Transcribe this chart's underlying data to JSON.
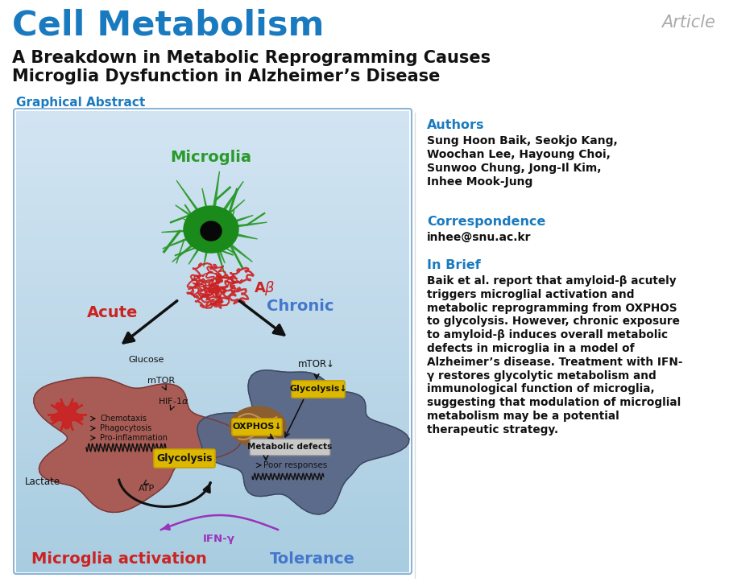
{
  "title_journal": "Cell Metabolism",
  "title_journal_color": "#1a7abf",
  "article_label": "Article",
  "article_color": "#aaaaaa",
  "paper_title_line1": "A Breakdown in Metabolic Reprogramming Causes",
  "paper_title_line2": "Microglia Dysfunction in Alzheimer’s Disease",
  "paper_title_color": "#111111",
  "graphical_abstract_label": "Graphical Abstract",
  "graphical_abstract_color": "#1a7abf",
  "authors_label": "Authors",
  "authors_color": "#1a7abf",
  "authors_lines": [
    "Sung Hoon Baik, Seokjo Kang,",
    "Woochan Lee, Hayoung Choi,",
    "Sunwoo Chung, Jong-Il Kim,",
    "Inhee Mook-Jung"
  ],
  "correspondence_label": "Correspondence",
  "correspondence_color": "#1a7abf",
  "correspondence_email": "inhee@snu.ac.kr",
  "in_brief_label": "In Brief",
  "in_brief_color": "#1a7abf",
  "in_brief_lines": [
    "Baik et al. report that amyloid-β acutely",
    "triggers microglial activation and",
    "metabolic reprogramming from OXPHOS",
    "to glycolysis. However, chronic exposure",
    "to amyloid-β induces overall metabolic",
    "defects in microglia in a model of",
    "Alzheimer’s disease. Treatment with IFN-",
    "γ restores glycolytic metabolism and",
    "immunological function of microglia,",
    "suggesting that modulation of microglial",
    "metabolism may be a potential",
    "therapeutic strategy."
  ],
  "bg_color": "#ffffff",
  "box_border_color": "#8ab4d8",
  "left_cell_color": "#a85850",
  "right_cell_color": "#5a6888",
  "microglia_green": "#2a9a2a",
  "microglia_body": "#1a8a1a",
  "nucleus_color": "#080808",
  "ab_color": "#cc2222",
  "acute_color": "#cc2222",
  "chronic_color": "#4477cc",
  "activation_color": "#cc2222",
  "tolerance_color": "#4477cc",
  "gold_color": "#c8a000",
  "gold_bg": "#ddb800",
  "mito_color": "#8b5e30",
  "mito_light": "#c49050",
  "arrow_black": "#111111",
  "ifn_color": "#9933bb",
  "text_black": "#111111",
  "metabolic_box_color": "#c8c8c8"
}
